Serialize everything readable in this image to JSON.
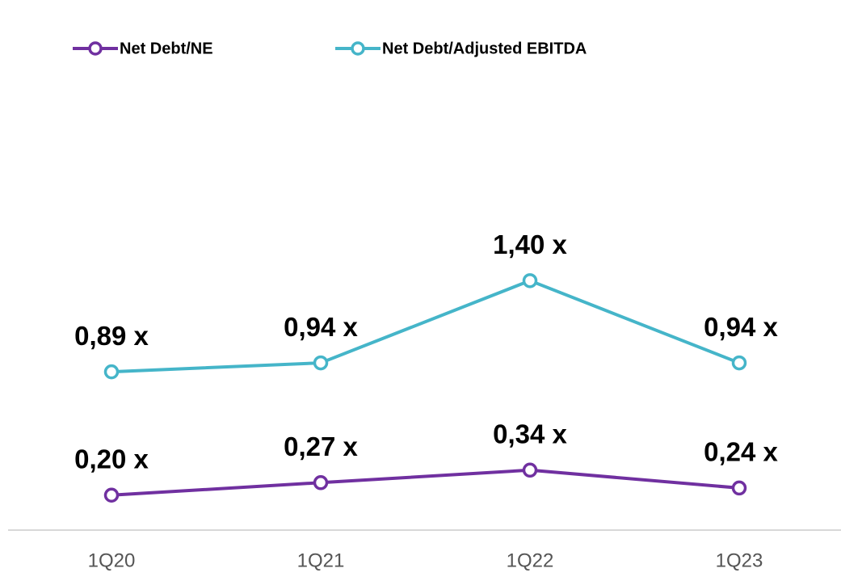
{
  "chart_data": {
    "type": "line",
    "categories": [
      "1Q20",
      "1Q21",
      "1Q22",
      "1Q23"
    ],
    "series": [
      {
        "name": "Net Debt/NE",
        "color": "#7030a0",
        "values": [
          0.2,
          0.27,
          0.34,
          0.24
        ],
        "value_labels": [
          "0,20 x",
          "0,27 x",
          "0,34 x",
          "0,24 x"
        ]
      },
      {
        "name": "Net Debt/Adjusted EBITDA",
        "color": "#45b5c9",
        "values": [
          0.89,
          0.94,
          1.4,
          0.94
        ],
        "value_labels": [
          "0,89 x",
          "0,94 x",
          "1,40 x",
          "0,94 x"
        ]
      }
    ],
    "ylim": [
      0,
      2.5
    ],
    "grid": false
  }
}
